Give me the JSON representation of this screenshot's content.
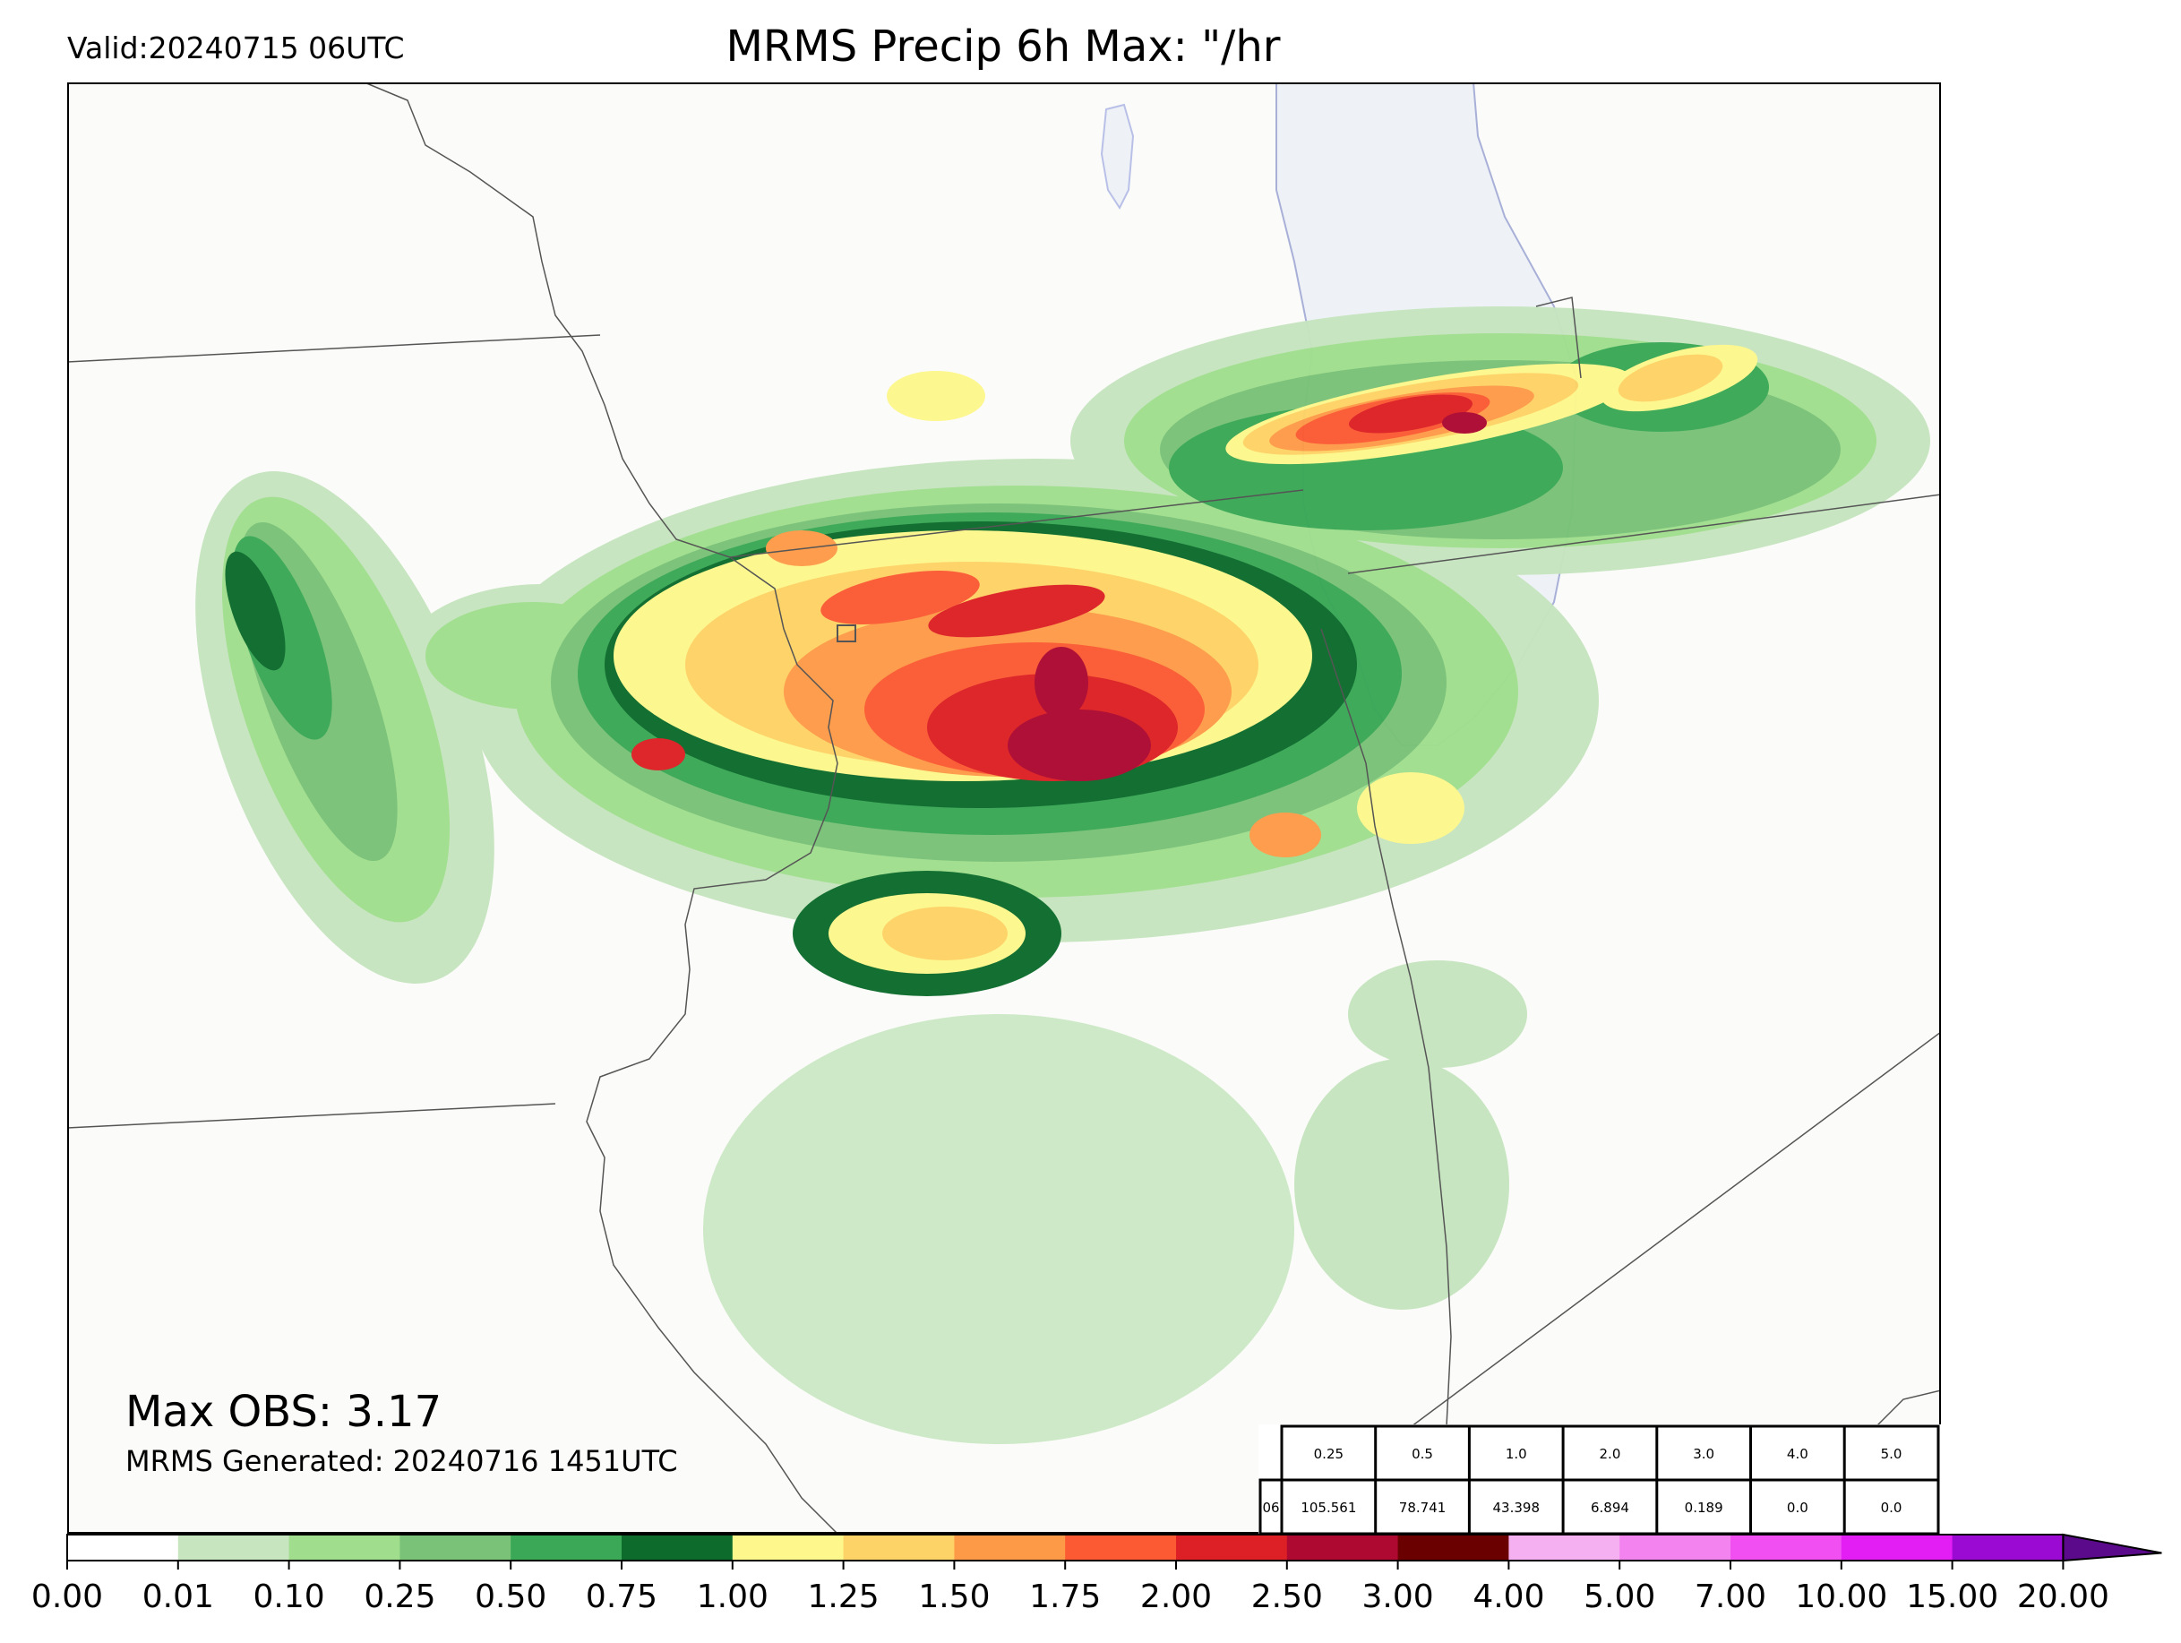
{
  "valid_label": "Valid:20240715 06UTC",
  "title": "MRMS Precip 6h Max: \"/hr",
  "max_obs": "Max OBS: 3.17",
  "generated": "MRMS Generated: 20240716 1451UTC",
  "stats_table": {
    "header": [
      "0.25",
      "0.5",
      "1.0",
      "2.0",
      "3.0",
      "4.0",
      "5.0"
    ],
    "row_label": "06",
    "values": [
      "105.561",
      "78.741",
      "43.398",
      "6.894",
      "0.189",
      "0.0",
      "0.0"
    ]
  },
  "colorbar": {
    "ticks": [
      "0.00",
      "0.01",
      "0.10",
      "0.25",
      "0.50",
      "0.75",
      "1.00",
      "1.25",
      "1.50",
      "1.75",
      "2.00",
      "2.50",
      "3.00",
      "4.00",
      "5.00",
      "7.00",
      "10.00",
      "15.00",
      "20.00"
    ],
    "colors": [
      "#ffffff",
      "#c7e5bf",
      "#a0de8e",
      "#79c277",
      "#3aa856",
      "#0d6b2c",
      "#fdf78c",
      "#fdd266",
      "#fd9a48",
      "#fb5a33",
      "#dc2025",
      "#ad0931",
      "#6b0000",
      "#f5b0f1",
      "#f383ef",
      "#f24ff2",
      "#e21ef5",
      "#9a0ad3"
    ],
    "extend_color": "#5c0a8c"
  },
  "map_colors": {
    "background": "#fbfbf9",
    "lake": "#eef2f7",
    "lake_edge": "#a8b0d8",
    "borders": "#555555"
  }
}
